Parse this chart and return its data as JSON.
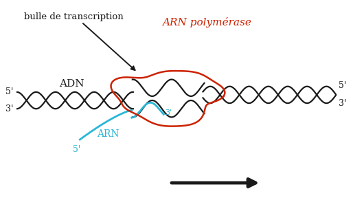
{
  "bg_color": "#ffffff",
  "dna_color": "#1a1a1a",
  "arn_color": "#29b6d8",
  "polymerase_color": "#cc2200",
  "label_dna": "ADN",
  "label_arn": "ARN",
  "label_polymerase": "ARN polymérase",
  "label_bulle": "bulle de transcription",
  "label_5prime_left": "5'",
  "label_3prime_left": "3'",
  "label_5prime_right_top": "5'",
  "label_3prime_right_bottom": "3'",
  "label_3prime_arn": "3'",
  "label_5prime_arn": "5'",
  "figsize": [
    5.14,
    2.88
  ],
  "dpi": 100
}
